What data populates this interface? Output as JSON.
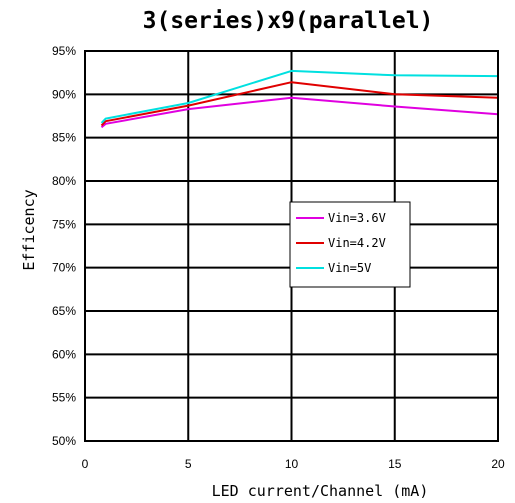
{
  "chart_data": {
    "type": "line",
    "title": "3(series)x9(parallel)",
    "xlabel": "LED current/Channel (mA)",
    "ylabel": "Efficency",
    "xlim": [
      0,
      20
    ],
    "ylim": [
      50,
      95
    ],
    "x_ticks": [
      0,
      5,
      10,
      15,
      20
    ],
    "y_ticks": [
      50,
      55,
      60,
      65,
      70,
      75,
      80,
      85,
      90,
      95
    ],
    "y_tick_labels": [
      "50%",
      "55%",
      "60%",
      "65%",
      "70%",
      "75%",
      "80%",
      "85%",
      "90%",
      "95%"
    ],
    "grid": true,
    "legend_position": "center-right",
    "series": [
      {
        "name": "Vin=3.6V",
        "color": "#e000e0",
        "x": [
          0.8,
          1,
          5,
          10,
          15,
          20
        ],
        "y": [
          86.2,
          86.6,
          88.3,
          89.6,
          88.6,
          87.7
        ]
      },
      {
        "name": "Vin=4.2V",
        "color": "#e00000",
        "x": [
          0.8,
          1,
          5,
          10,
          15,
          20
        ],
        "y": [
          86.4,
          86.9,
          88.7,
          91.4,
          90.0,
          89.6
        ]
      },
      {
        "name": "Vin=5V",
        "color": "#00e0e0",
        "x": [
          0.8,
          1,
          5,
          10,
          15,
          20
        ],
        "y": [
          86.7,
          87.2,
          89.0,
          92.7,
          92.2,
          92.1
        ]
      }
    ]
  }
}
